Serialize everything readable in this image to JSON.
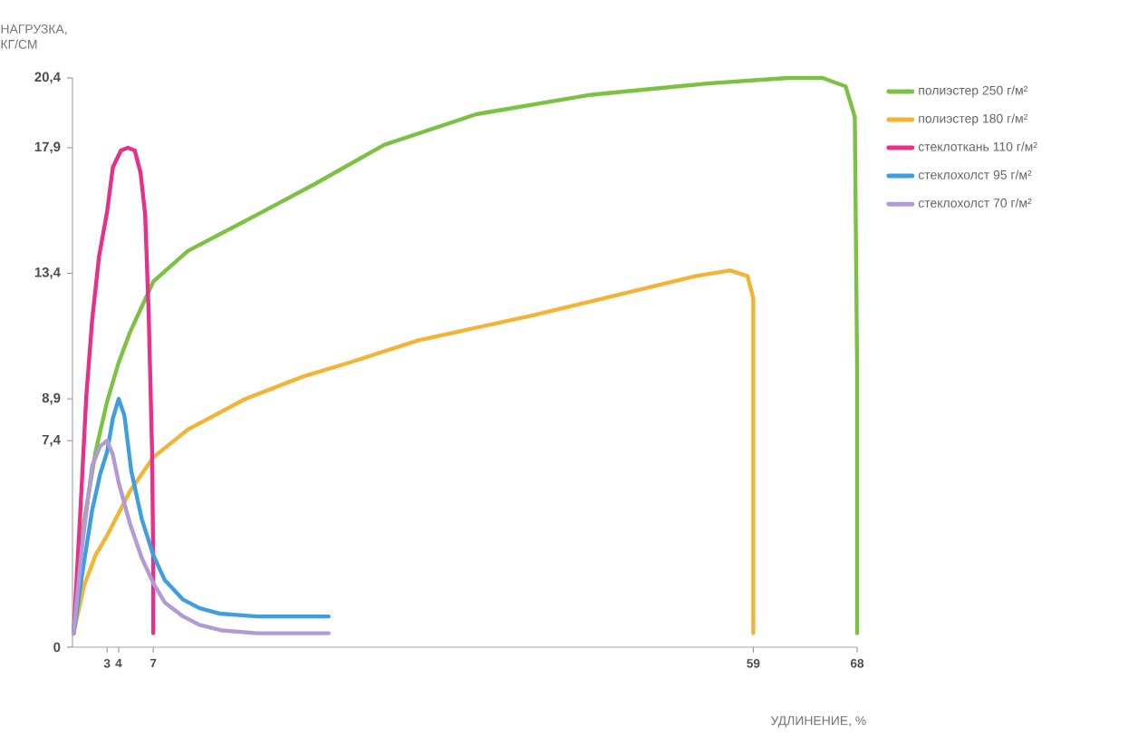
{
  "chart_data": {
    "type": "line",
    "xlabel": "УДЛИНЕНИЕ, %",
    "ylabel": "НАГРУЗКА, КГ/СМ",
    "xlim": [
      0,
      68
    ],
    "ylim": [
      0,
      20.4
    ],
    "xticks": [
      3,
      4,
      7,
      59,
      68
    ],
    "yticks": [
      0,
      {
        "value": 7.4,
        "label": "7,4"
      },
      {
        "value": 8.9,
        "label": "8,9"
      },
      {
        "value": 13.4,
        "label": "13,4"
      },
      {
        "value": 17.9,
        "label": "17,9"
      },
      {
        "value": 20.4,
        "label": "20,4"
      }
    ],
    "legend": "top right",
    "series": [
      {
        "name": "полиэстер 250 г/м²",
        "color": "#7cc242",
        "x": [
          0.1,
          1,
          2,
          3,
          4,
          5,
          7,
          10,
          16,
          21,
          27,
          35,
          45,
          55,
          62,
          65,
          67,
          67.8,
          68,
          68
        ],
        "values": [
          0.5,
          4.5,
          7,
          8.8,
          10.2,
          11.3,
          13.1,
          14.2,
          15.5,
          16.6,
          18,
          19.1,
          19.8,
          20.2,
          20.4,
          20.4,
          20.1,
          19,
          10,
          0.5
        ]
      },
      {
        "name": "полиэстер 180 г/м²",
        "color": "#f5b335",
        "x": [
          0.1,
          1,
          2,
          3,
          4,
          5,
          7,
          10,
          15,
          20,
          24,
          30,
          40,
          48,
          54,
          57,
          58.5,
          59,
          59
        ],
        "values": [
          0.5,
          2.2,
          3.3,
          4,
          4.8,
          5.6,
          6.8,
          7.8,
          8.9,
          9.7,
          10.2,
          11,
          11.9,
          12.7,
          13.3,
          13.5,
          13.3,
          12.5,
          0.5
        ]
      },
      {
        "name": "стеклоткань 110 г/м²",
        "color": "#e8308a",
        "x": [
          0.1,
          0.7,
          1.2,
          1.7,
          2.3,
          3,
          3.5,
          4.2,
          4.8,
          5.4,
          5.9,
          6.3,
          6.6,
          6.9,
          7,
          7
        ],
        "values": [
          0.5,
          5,
          9,
          11.7,
          14,
          15.6,
          17.2,
          17.8,
          17.9,
          17.8,
          17,
          15.5,
          12,
          7,
          3,
          0.5
        ]
      },
      {
        "name": "стеклохолст 95 г/м²",
        "color": "#3d9ee0",
        "x": [
          0.1,
          0.8,
          1.7,
          2.4,
          3,
          3.5,
          4,
          4.5,
          5.1,
          6,
          7,
          8,
          9.6,
          11,
          12.8,
          16,
          22.2
        ],
        "values": [
          0.5,
          2.5,
          4.9,
          6.2,
          7,
          8.2,
          8.9,
          8.3,
          6.3,
          4.6,
          3.3,
          2.4,
          1.7,
          1.4,
          1.2,
          1.1,
          1.1
        ]
      },
      {
        "name": "стеклохолст 70 г/м²",
        "color": "#b39ad6",
        "x": [
          0.1,
          0.8,
          1.7,
          2.4,
          3,
          3.5,
          4,
          5,
          6,
          7,
          8,
          9.6,
          11,
          13,
          16,
          22.2
        ],
        "values": [
          0.5,
          3.5,
          6.5,
          7.2,
          7.4,
          6.9,
          5.9,
          4.4,
          3.2,
          2.3,
          1.6,
          1.1,
          0.8,
          0.6,
          0.5,
          0.5
        ]
      }
    ]
  }
}
